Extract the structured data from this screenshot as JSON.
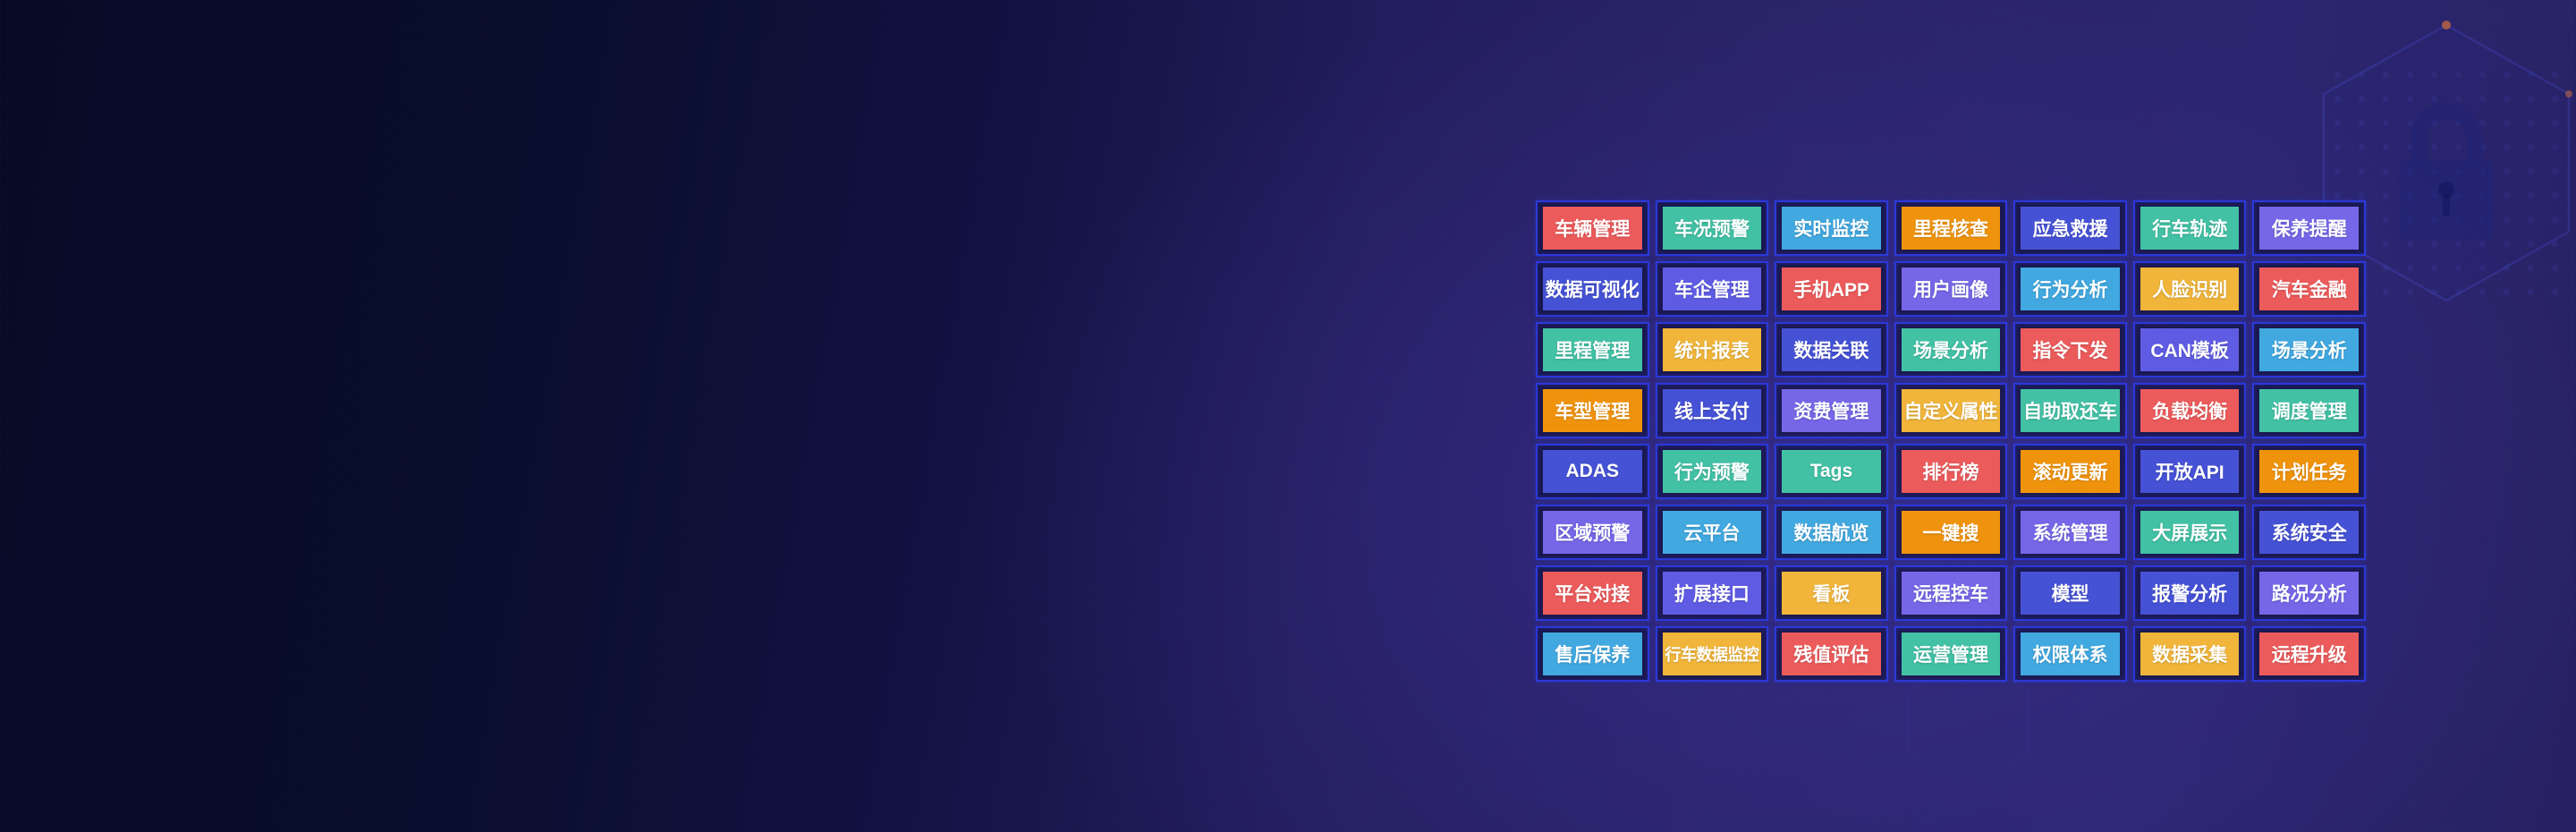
{
  "background": {
    "base_dark": "#0a0e2e",
    "base_indigo": "#2c2670",
    "cell_border": "#2c38d8",
    "cell_inner": "#13133f"
  },
  "palette": {
    "red": "#ec5b5b",
    "teal": "#42c1a5",
    "lightblue": "#41a8e0",
    "orange": "#f0930c",
    "blue": "#4652d5",
    "blueviolet": "#5f5ce3",
    "purple": "#7567e7",
    "yellow": "#f0b53a"
  },
  "decor": {
    "lock_icon": "lock-icon",
    "hexagon_icon": "hexagon-icon",
    "accent_dot_color": "#c96a3a"
  },
  "feature_grid": {
    "rows": [
      {
        "cells": [
          {
            "label": "车辆管理",
            "color": "red"
          },
          {
            "label": "车况预警",
            "color": "teal"
          },
          {
            "label": "实时监控",
            "color": "lightblue"
          },
          {
            "label": "里程核查",
            "color": "orange"
          },
          {
            "label": "应急救援",
            "color": "blue"
          },
          {
            "label": "行车轨迹",
            "color": "teal"
          },
          {
            "label": "保养提醒",
            "color": "purple"
          }
        ]
      },
      {
        "cells": [
          {
            "label": "数据可视化",
            "color": "blue"
          },
          {
            "label": "车企管理",
            "color": "blueviolet"
          },
          {
            "label": "手机APP",
            "color": "red"
          },
          {
            "label": "用户画像",
            "color": "purple"
          },
          {
            "label": "行为分析",
            "color": "lightblue"
          },
          {
            "label": "人脸识别",
            "color": "yellow"
          },
          {
            "label": "汽车金融",
            "color": "red"
          }
        ]
      },
      {
        "cells": [
          {
            "label": "里程管理",
            "color": "teal"
          },
          {
            "label": "统计报表",
            "color": "yellow"
          },
          {
            "label": "数据关联",
            "color": "blue"
          },
          {
            "label": "场景分析",
            "color": "teal"
          },
          {
            "label": "指令下发",
            "color": "red"
          },
          {
            "label": "CAN模板",
            "color": "blueviolet"
          },
          {
            "label": "场景分析",
            "color": "lightblue"
          }
        ]
      },
      {
        "cells": [
          {
            "label": "车型管理",
            "color": "orange"
          },
          {
            "label": "线上支付",
            "color": "blue"
          },
          {
            "label": "资费管理",
            "color": "purple"
          },
          {
            "label": "自定义属性",
            "color": "yellow"
          },
          {
            "label": "自助取还车",
            "color": "teal"
          },
          {
            "label": "负载均衡",
            "color": "red"
          },
          {
            "label": "调度管理",
            "color": "teal"
          }
        ]
      },
      {
        "cells": [
          {
            "label": "ADAS",
            "color": "blue"
          },
          {
            "label": "行为预警",
            "color": "teal"
          },
          {
            "label": "Tags",
            "color": "teal"
          },
          {
            "label": "排行榜",
            "color": "red"
          },
          {
            "label": "滚动更新",
            "color": "orange"
          },
          {
            "label": "开放API",
            "color": "blue"
          },
          {
            "label": "计划任务",
            "color": "orange"
          }
        ]
      },
      {
        "cells": [
          {
            "label": "区域预警",
            "color": "purple"
          },
          {
            "label": "云平台",
            "color": "lightblue"
          },
          {
            "label": "数据航览",
            "color": "lightblue"
          },
          {
            "label": "一键搜",
            "color": "orange"
          },
          {
            "label": "系统管理",
            "color": "purple"
          },
          {
            "label": "大屏展示",
            "color": "teal"
          },
          {
            "label": "系统安全",
            "color": "blue"
          }
        ]
      },
      {
        "cells": [
          {
            "label": "平台对接",
            "color": "red"
          },
          {
            "label": "扩展接口",
            "color": "blueviolet"
          },
          {
            "label": "看板",
            "color": "yellow"
          },
          {
            "label": "远程控车",
            "color": "purple"
          },
          {
            "label": "模型",
            "color": "blue"
          },
          {
            "label": "报警分析",
            "color": "blue"
          },
          {
            "label": "路况分析",
            "color": "purple"
          }
        ]
      },
      {
        "cells": [
          {
            "label": "售后保养",
            "color": "lightblue"
          },
          {
            "label": "行车数据监控",
            "color": "yellow"
          },
          {
            "label": "残值评估",
            "color": "red"
          },
          {
            "label": "运营管理",
            "color": "teal"
          },
          {
            "label": "权限体系",
            "color": "lightblue"
          },
          {
            "label": "数据采集",
            "color": "yellow"
          },
          {
            "label": "远程升级",
            "color": "red"
          }
        ]
      }
    ]
  }
}
